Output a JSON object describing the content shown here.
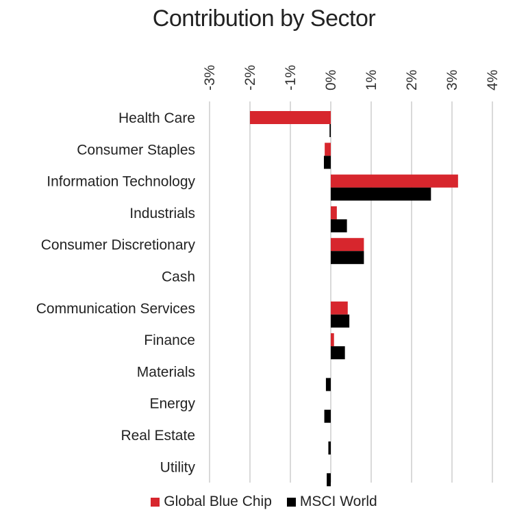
{
  "chart_data": {
    "type": "bar",
    "orientation": "horizontal",
    "title": "Contribution by Sector",
    "categories": [
      "Health Care",
      "Consumer Staples",
      "Information Technology",
      "Industrials",
      "Consumer Discretionary",
      "Cash",
      "Communication Services",
      "Finance",
      "Materials",
      "Energy",
      "Real Estate",
      "Utility"
    ],
    "series": [
      {
        "name": "Global Blue Chip",
        "color": "#d7262d",
        "values": [
          -2.0,
          -0.15,
          3.15,
          0.15,
          0.82,
          0.0,
          0.42,
          0.08,
          0.0,
          0.0,
          0.0,
          0.0
        ]
      },
      {
        "name": "MSCI World",
        "color": "#000000",
        "values": [
          -0.03,
          -0.17,
          2.48,
          0.4,
          0.82,
          0.0,
          0.46,
          0.35,
          -0.12,
          -0.16,
          -0.06,
          -0.1
        ]
      }
    ],
    "xlim": [
      -3,
      4
    ],
    "xticks": [
      -3,
      -2,
      -1,
      0,
      1,
      2,
      3,
      4
    ],
    "xtick_labels": [
      "-3%",
      "-2%",
      "-1%",
      "0%",
      "1%",
      "2%",
      "3%",
      "4%"
    ],
    "xaxis_position": "top",
    "tick_label_rotation": "vertical",
    "grid": true,
    "legend_position": "bottom"
  }
}
